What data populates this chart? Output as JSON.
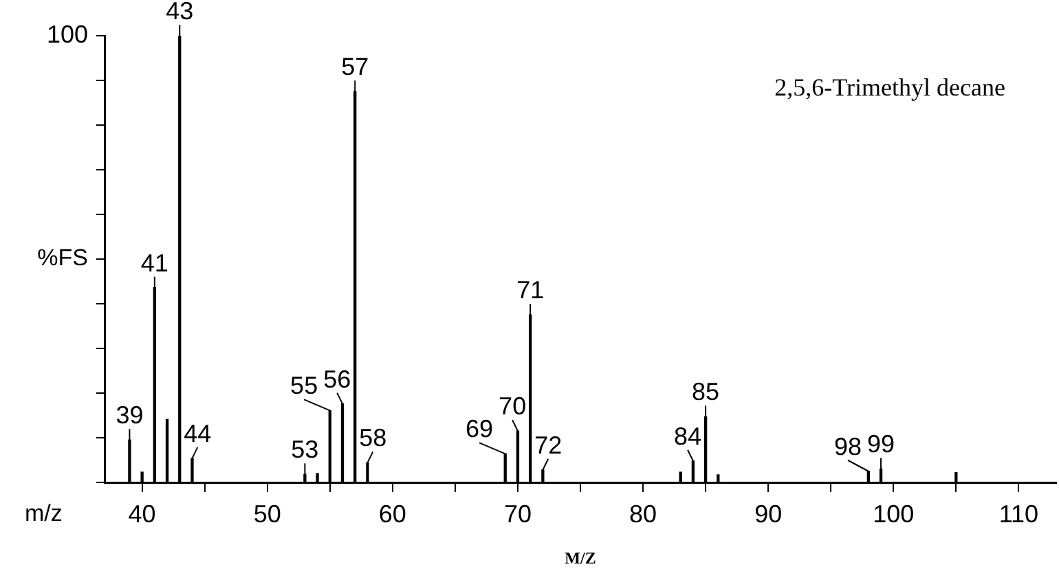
{
  "chart_data": {
    "type": "bar",
    "title": "2,5,6-Trimethyl decane",
    "xlabel": "M/Z",
    "ylabel": "%FS",
    "x": [
      39,
      40,
      41,
      42,
      43,
      44,
      53,
      54,
      55,
      56,
      57,
      58,
      69,
      70,
      71,
      72,
      83,
      84,
      85,
      86,
      98,
      99,
      105
    ],
    "values": [
      9.5,
      2.3,
      43.6,
      14.1,
      100,
      5.4,
      1.8,
      2,
      16.1,
      17.6,
      87.5,
      4.4,
      6.4,
      11.5,
      37.5,
      2.8,
      2.3,
      4.8,
      14.7,
      1.7,
      2.5,
      3,
      2.2
    ],
    "color": "#000000",
    "xlim": [
      37,
      113
    ],
    "xticks": [
      40,
      {
        "value": 45,
        "label": null
      },
      50,
      {
        "value": 55,
        "label": null
      },
      60,
      {
        "value": 65,
        "label": null
      },
      70,
      {
        "value": 75,
        "label": null
      },
      80,
      {
        "value": 85,
        "label": null
      },
      90,
      {
        "value": 95,
        "label": null
      },
      100,
      {
        "value": 105,
        "label": null
      },
      110
    ],
    "ylim": [
      0,
      100
    ],
    "yticks": [
      0,
      {
        "value": 10,
        "label": null
      },
      {
        "value": 20,
        "label": null
      },
      {
        "value": 30,
        "label": null
      },
      {
        "value": 40,
        "label": null
      },
      {
        "value": 50,
        "label": null
      },
      {
        "value": 60,
        "label": null
      },
      {
        "value": 70,
        "label": null
      },
      {
        "value": 80,
        "label": null
      },
      {
        "value": 90,
        "label": null
      },
      100
    ],
    "grid": false,
    "legend": false,
    "annotations": [
      "m/z",
      {
        "text": "39",
        "x": 39,
        "y": 9.5
      },
      {
        "text": "41",
        "x": 41,
        "y": 43.6
      },
      {
        "text": "43",
        "x": 43,
        "y": 100
      },
      {
        "text": "44",
        "x": 44,
        "y": 5.4
      },
      {
        "text": "53",
        "x": 53,
        "y": 1.8
      },
      {
        "text": "55",
        "x": 55,
        "y": 16.1
      },
      {
        "text": "56",
        "x": 56,
        "y": 17.6
      },
      {
        "text": "57",
        "x": 57,
        "y": 87.5
      },
      {
        "text": "58",
        "x": 58,
        "y": 4.4
      },
      {
        "text": "69",
        "x": 69,
        "y": 6.4
      },
      {
        "text": "70",
        "x": 70,
        "y": 11.5
      },
      {
        "text": "71",
        "x": 71,
        "y": 37.5
      },
      {
        "text": "72",
        "x": 72,
        "y": 2.8
      },
      {
        "text": "84",
        "x": 84,
        "y": 4.8
      },
      {
        "text": "85",
        "x": 85,
        "y": 14.7
      },
      {
        "text": "98",
        "x": 98,
        "y": 2.5
      },
      {
        "text": "99",
        "x": 99,
        "y": 3
      }
    ]
  }
}
